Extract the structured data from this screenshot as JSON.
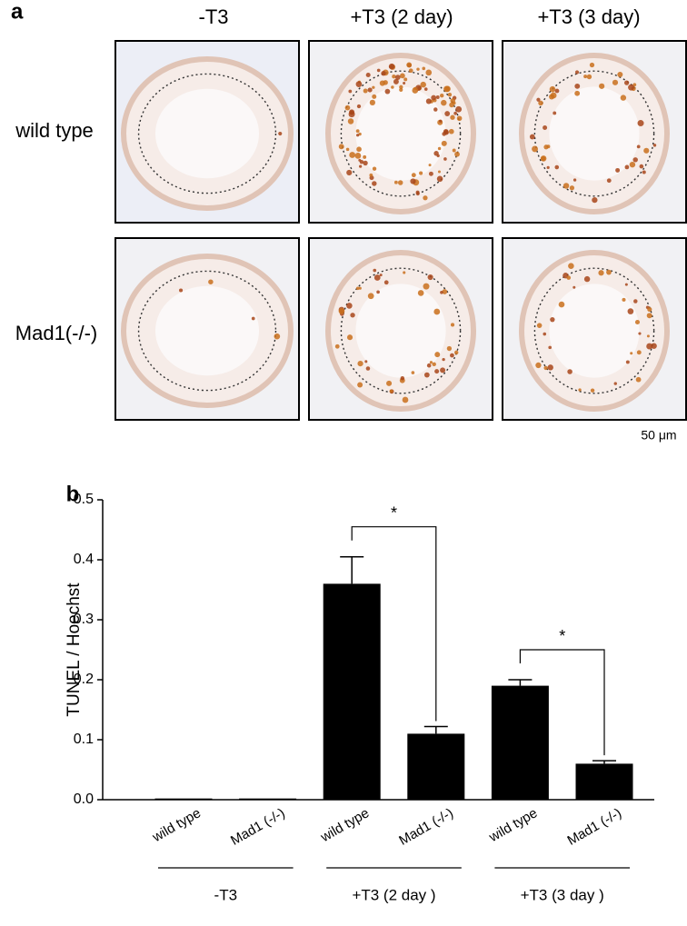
{
  "panel_a": {
    "label": "a",
    "columns": [
      "-T3",
      "+T3 (2 day)",
      "+T3 (3 day)"
    ],
    "rows": [
      "wild type",
      "Mad1(-/-)"
    ],
    "scale_bar": "50 μm"
  },
  "chart_data": {
    "type": "bar",
    "panel_label": "b",
    "ylabel": "TUNEL / Hoechst",
    "categories": [
      "wild type",
      "Mad1 (-/-)",
      "wild type",
      "Mad1 (-/-)",
      "wild type",
      "Mad1 (-/-)"
    ],
    "series": [
      {
        "color": "#000000",
        "values": [
          0.002,
          0.002,
          0.36,
          0.11,
          0.19,
          0.06
        ],
        "errors": [
          0,
          0,
          0.045,
          0.012,
          0.01,
          0.005
        ]
      }
    ],
    "group_labels": [
      "-T3",
      "+T3 (2 day )",
      "+T3 (3 day )"
    ],
    "annotations": [
      "*",
      "*"
    ],
    "ylim": [
      0,
      0.5
    ],
    "yticks": [
      {
        "value": 0,
        "label": "0.0"
      },
      0.1,
      0.2,
      0.3,
      0.4,
      0.5
    ]
  }
}
